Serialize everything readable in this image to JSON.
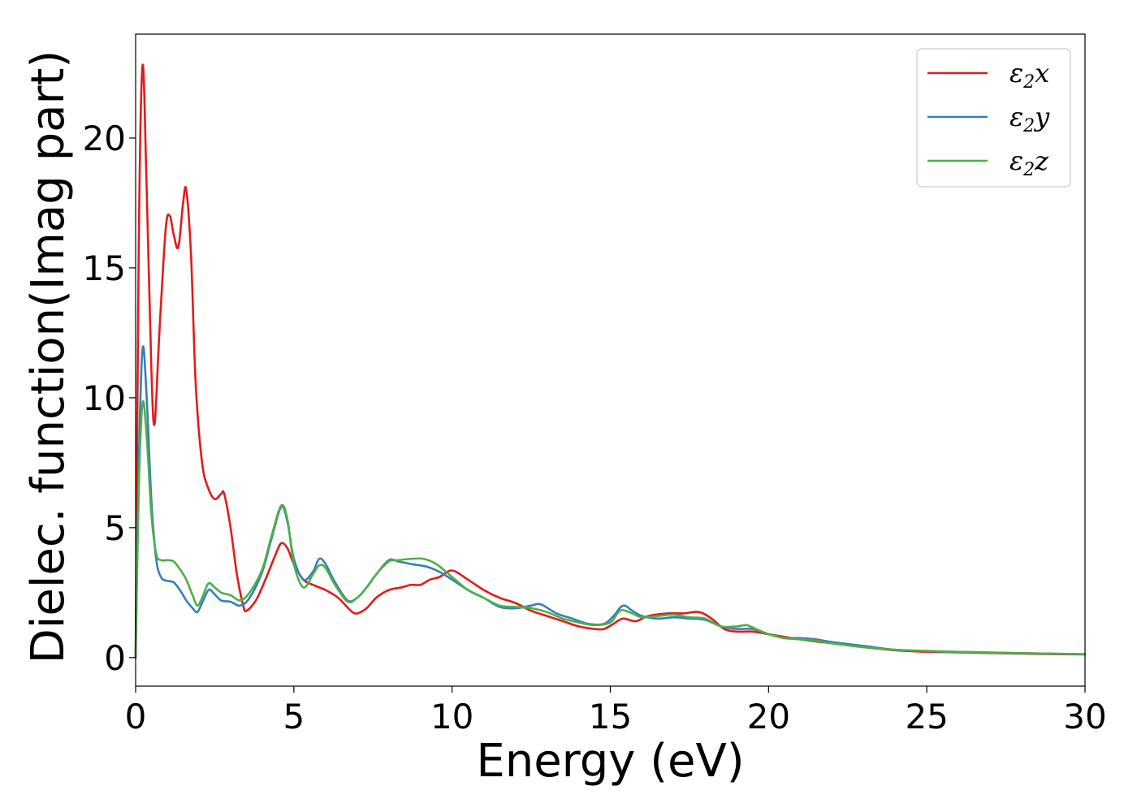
{
  "chart_data": {
    "type": "line",
    "xlabel": "Energy (eV)",
    "ylabel": "Dielec. function(Imag part)",
    "xlim": [
      0,
      30
    ],
    "ylim": [
      -1.1,
      24
    ],
    "xticks": [
      0,
      5,
      10,
      15,
      20,
      25,
      30
    ],
    "yticks": [
      0,
      5,
      10,
      15,
      20
    ],
    "grid": false,
    "legend_position": "top-right",
    "series": [
      {
        "name": "ε₂x",
        "legend_base": "ε",
        "legend_sub": "2",
        "legend_tail": "x",
        "color": "#e41a1c",
        "points": [
          [
            0,
            0
          ],
          [
            0.1,
            16
          ],
          [
            0.22,
            22.8
          ],
          [
            0.35,
            18
          ],
          [
            0.5,
            11
          ],
          [
            0.6,
            9.0
          ],
          [
            0.75,
            12.5
          ],
          [
            0.95,
            16.5
          ],
          [
            1.08,
            17.0
          ],
          [
            1.2,
            16.3
          ],
          [
            1.35,
            15.8
          ],
          [
            1.5,
            17.5
          ],
          [
            1.6,
            18.0
          ],
          [
            1.75,
            15.5
          ],
          [
            1.9,
            10.5
          ],
          [
            2.1,
            7.5
          ],
          [
            2.3,
            6.5
          ],
          [
            2.5,
            6.1
          ],
          [
            2.7,
            6.3
          ],
          [
            2.8,
            6.3
          ],
          [
            3.0,
            5.0
          ],
          [
            3.2,
            3.2
          ],
          [
            3.4,
            2.0
          ],
          [
            3.5,
            1.8
          ],
          [
            3.8,
            2.2
          ],
          [
            4.1,
            3.0
          ],
          [
            4.4,
            3.9
          ],
          [
            4.6,
            4.4
          ],
          [
            4.8,
            4.2
          ],
          [
            5.0,
            3.6
          ],
          [
            5.3,
            3.0
          ],
          [
            5.6,
            2.8
          ],
          [
            6.0,
            2.6
          ],
          [
            6.4,
            2.3
          ],
          [
            6.8,
            1.8
          ],
          [
            7.0,
            1.7
          ],
          [
            7.3,
            1.9
          ],
          [
            7.6,
            2.3
          ],
          [
            8.0,
            2.6
          ],
          [
            8.4,
            2.7
          ],
          [
            8.7,
            2.8
          ],
          [
            9.0,
            2.8
          ],
          [
            9.3,
            3.0
          ],
          [
            9.6,
            3.1
          ],
          [
            10.0,
            3.35
          ],
          [
            10.5,
            3.0
          ],
          [
            11.0,
            2.6
          ],
          [
            11.5,
            2.3
          ],
          [
            12.0,
            2.1
          ],
          [
            12.5,
            1.8
          ],
          [
            13.0,
            1.6
          ],
          [
            13.5,
            1.4
          ],
          [
            14.0,
            1.2
          ],
          [
            14.5,
            1.1
          ],
          [
            14.8,
            1.1
          ],
          [
            15.1,
            1.3
          ],
          [
            15.4,
            1.5
          ],
          [
            15.8,
            1.4
          ],
          [
            16.2,
            1.6
          ],
          [
            16.8,
            1.7
          ],
          [
            17.3,
            1.7
          ],
          [
            17.8,
            1.75
          ],
          [
            18.2,
            1.5
          ],
          [
            18.6,
            1.1
          ],
          [
            19.0,
            1.0
          ],
          [
            19.5,
            1.0
          ],
          [
            20.0,
            0.9
          ],
          [
            21.0,
            0.7
          ],
          [
            22.0,
            0.55
          ],
          [
            23.0,
            0.4
          ],
          [
            24.0,
            0.28
          ],
          [
            25.0,
            0.22
          ],
          [
            26.0,
            0.2
          ],
          [
            28.0,
            0.15
          ],
          [
            30.0,
            0.12
          ]
        ]
      },
      {
        "name": "ε₂y",
        "legend_base": "ε",
        "legend_sub": "2",
        "legend_tail": "y",
        "color": "#377eb8",
        "points": [
          [
            0,
            0
          ],
          [
            0.1,
            7.5
          ],
          [
            0.22,
            11.9
          ],
          [
            0.35,
            10.0
          ],
          [
            0.5,
            6.0
          ],
          [
            0.65,
            3.8
          ],
          [
            0.8,
            3.1
          ],
          [
            1.0,
            2.95
          ],
          [
            1.2,
            2.9
          ],
          [
            1.4,
            2.6
          ],
          [
            1.6,
            2.2
          ],
          [
            1.8,
            1.9
          ],
          [
            1.95,
            1.75
          ],
          [
            2.1,
            2.1
          ],
          [
            2.3,
            2.6
          ],
          [
            2.45,
            2.5
          ],
          [
            2.7,
            2.2
          ],
          [
            3.0,
            2.15
          ],
          [
            3.3,
            2.0
          ],
          [
            3.6,
            2.3
          ],
          [
            4.0,
            3.3
          ],
          [
            4.3,
            4.6
          ],
          [
            4.6,
            5.8
          ],
          [
            4.8,
            5.2
          ],
          [
            5.0,
            3.8
          ],
          [
            5.3,
            3.0
          ],
          [
            5.6,
            3.3
          ],
          [
            5.8,
            3.8
          ],
          [
            6.0,
            3.6
          ],
          [
            6.3,
            2.9
          ],
          [
            6.7,
            2.2
          ],
          [
            7.0,
            2.3
          ],
          [
            7.3,
            2.7
          ],
          [
            7.6,
            3.2
          ],
          [
            8.0,
            3.75
          ],
          [
            8.3,
            3.7
          ],
          [
            8.7,
            3.6
          ],
          [
            9.2,
            3.5
          ],
          [
            9.6,
            3.3
          ],
          [
            10.0,
            3.0
          ],
          [
            10.5,
            2.6
          ],
          [
            11.0,
            2.3
          ],
          [
            11.5,
            1.95
          ],
          [
            12.0,
            1.9
          ],
          [
            12.5,
            2.0
          ],
          [
            12.8,
            2.05
          ],
          [
            13.3,
            1.7
          ],
          [
            13.8,
            1.5
          ],
          [
            14.3,
            1.3
          ],
          [
            14.8,
            1.3
          ],
          [
            15.1,
            1.6
          ],
          [
            15.4,
            2.0
          ],
          [
            15.7,
            1.8
          ],
          [
            16.0,
            1.6
          ],
          [
            16.5,
            1.5
          ],
          [
            17.0,
            1.55
          ],
          [
            17.5,
            1.5
          ],
          [
            18.0,
            1.45
          ],
          [
            18.5,
            1.2
          ],
          [
            19.0,
            1.1
          ],
          [
            19.5,
            1.1
          ],
          [
            20.0,
            0.9
          ],
          [
            20.5,
            0.75
          ],
          [
            21.0,
            0.75
          ],
          [
            21.5,
            0.7
          ],
          [
            22.0,
            0.6
          ],
          [
            23.0,
            0.45
          ],
          [
            24.0,
            0.3
          ],
          [
            25.0,
            0.25
          ],
          [
            26.0,
            0.22
          ],
          [
            28.0,
            0.17
          ],
          [
            30.0,
            0.13
          ]
        ]
      },
      {
        "name": "ε₂z",
        "legend_base": "ε",
        "legend_sub": "2",
        "legend_tail": "z",
        "color": "#4daf4a",
        "points": [
          [
            0,
            0
          ],
          [
            0.1,
            6.5
          ],
          [
            0.22,
            9.8
          ],
          [
            0.35,
            8.5
          ],
          [
            0.5,
            5.5
          ],
          [
            0.65,
            4.0
          ],
          [
            0.8,
            3.75
          ],
          [
            1.0,
            3.75
          ],
          [
            1.2,
            3.7
          ],
          [
            1.4,
            3.4
          ],
          [
            1.6,
            3.0
          ],
          [
            1.8,
            2.4
          ],
          [
            1.95,
            2.0
          ],
          [
            2.1,
            2.3
          ],
          [
            2.3,
            2.85
          ],
          [
            2.5,
            2.7
          ],
          [
            2.7,
            2.5
          ],
          [
            3.0,
            2.4
          ],
          [
            3.3,
            2.2
          ],
          [
            3.6,
            2.5
          ],
          [
            4.0,
            3.4
          ],
          [
            4.3,
            4.7
          ],
          [
            4.6,
            5.85
          ],
          [
            4.8,
            5.3
          ],
          [
            5.0,
            3.6
          ],
          [
            5.3,
            2.7
          ],
          [
            5.6,
            3.2
          ],
          [
            5.8,
            3.55
          ],
          [
            6.0,
            3.45
          ],
          [
            6.3,
            2.8
          ],
          [
            6.7,
            2.15
          ],
          [
            7.0,
            2.3
          ],
          [
            7.3,
            2.7
          ],
          [
            7.6,
            3.2
          ],
          [
            8.0,
            3.7
          ],
          [
            8.3,
            3.75
          ],
          [
            8.7,
            3.8
          ],
          [
            9.1,
            3.8
          ],
          [
            9.5,
            3.6
          ],
          [
            10.0,
            3.1
          ],
          [
            10.5,
            2.6
          ],
          [
            11.0,
            2.3
          ],
          [
            11.5,
            2.0
          ],
          [
            12.0,
            1.95
          ],
          [
            12.5,
            1.9
          ],
          [
            13.0,
            1.75
          ],
          [
            13.5,
            1.5
          ],
          [
            14.0,
            1.35
          ],
          [
            14.5,
            1.25
          ],
          [
            15.0,
            1.35
          ],
          [
            15.3,
            1.8
          ],
          [
            15.6,
            1.75
          ],
          [
            16.0,
            1.55
          ],
          [
            16.5,
            1.6
          ],
          [
            17.0,
            1.65
          ],
          [
            17.5,
            1.55
          ],
          [
            18.0,
            1.5
          ],
          [
            18.5,
            1.2
          ],
          [
            19.0,
            1.2
          ],
          [
            19.3,
            1.25
          ],
          [
            19.6,
            1.1
          ],
          [
            20.0,
            0.9
          ],
          [
            20.5,
            0.75
          ],
          [
            21.0,
            0.7
          ],
          [
            21.5,
            0.65
          ],
          [
            22.0,
            0.55
          ],
          [
            23.0,
            0.4
          ],
          [
            24.0,
            0.3
          ],
          [
            25.0,
            0.26
          ],
          [
            26.0,
            0.22
          ],
          [
            28.0,
            0.17
          ],
          [
            30.0,
            0.13
          ]
        ]
      }
    ]
  }
}
